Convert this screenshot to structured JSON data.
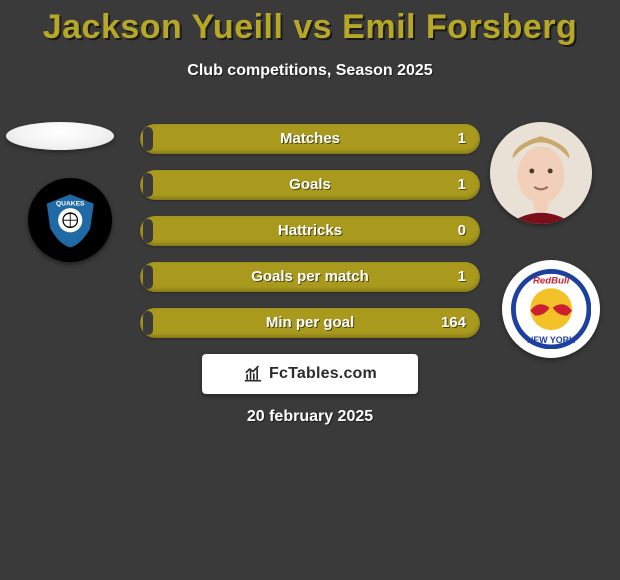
{
  "title": "Jackson Yueill vs Emil Forsberg",
  "subtitle": "Club competitions, Season 2025",
  "date": "20 february 2025",
  "colors": {
    "background": "#3a3a3a",
    "title": "#b6a826",
    "bar_track": "#a99a1e",
    "bar_fill": "#3a3a3a",
    "plate_bg": "#ffffff",
    "plate_text": "#2b2b2b",
    "plate_icon": "#2b2b2b",
    "left_badge_bg": "#000000",
    "left_badge_accent": "#1f6aa5",
    "left_badge_text": "#ffffff",
    "right_badge_bg": "#ffffff",
    "right_badge_blue": "#1d3fa0",
    "right_badge_red": "#cc1f2f",
    "right_badge_yellow": "#f3c128",
    "avatar_skin": "#f2cfb8",
    "avatar_hair": "#c9a86a",
    "avatar_shirt": "#7a0f1a",
    "avatar_bg": "#e9e1d6"
  },
  "bars": {
    "fill_ratio": 0.03,
    "items": [
      {
        "label": "Matches",
        "value": "1"
      },
      {
        "label": "Goals",
        "value": "1"
      },
      {
        "label": "Hattricks",
        "value": "0"
      },
      {
        "label": "Goals per match",
        "value": "1"
      },
      {
        "label": "Min per goal",
        "value": "164"
      }
    ]
  },
  "source": {
    "label": "FcTables.com"
  },
  "players": {
    "left": {
      "name": "Jackson Yueill"
    },
    "right": {
      "name": "Emil Forsberg"
    }
  },
  "teams": {
    "left": {
      "name": "San Jose Earthquakes",
      "short": "QUAKES"
    },
    "right": {
      "name": "New York Red Bulls",
      "short_top": "RedBull",
      "short_bottom": "NEW YORK"
    }
  }
}
